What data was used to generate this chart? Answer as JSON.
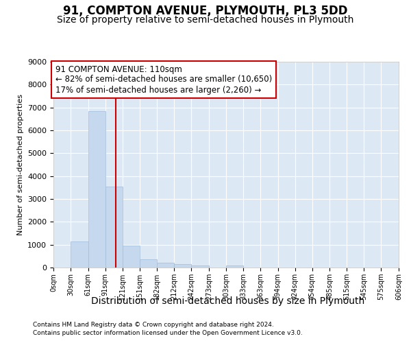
{
  "title": "91, COMPTON AVENUE, PLYMOUTH, PL3 5DD",
  "subtitle": "Size of property relative to semi-detached houses in Plymouth",
  "xlabel": "Distribution of semi-detached houses by size in Plymouth",
  "ylabel": "Number of semi-detached properties",
  "bin_edges": [
    0,
    30,
    61,
    91,
    121,
    151,
    182,
    212,
    242,
    273,
    303,
    333,
    363,
    394,
    424,
    454,
    485,
    515,
    545,
    575,
    606
  ],
  "bar_heights": [
    0,
    1150,
    6850,
    3550,
    950,
    350,
    200,
    150,
    100,
    0,
    100,
    0,
    0,
    0,
    0,
    0,
    0,
    0,
    0,
    0
  ],
  "bar_color": "#c5d8ee",
  "bar_edge_color": "#a0bcd8",
  "property_size": 110,
  "red_line_color": "#cc0000",
  "ylim": [
    0,
    9000
  ],
  "yticks": [
    0,
    1000,
    2000,
    3000,
    4000,
    5000,
    6000,
    7000,
    8000,
    9000
  ],
  "annotation_line1": "91 COMPTON AVENUE: 110sqm",
  "annotation_line2": "← 82% of semi-detached houses are smaller (10,650)",
  "annotation_line3": "17% of semi-detached houses are larger (2,260) →",
  "annotation_box_color": "#ffffff",
  "annotation_box_edge": "#cc0000",
  "bg_color": "#dde8f5",
  "footer_line1": "Contains HM Land Registry data © Crown copyright and database right 2024.",
  "footer_line2": "Contains public sector information licensed under the Open Government Licence v3.0.",
  "title_fontsize": 12,
  "subtitle_fontsize": 10,
  "tick_label_fontsize": 7,
  "ylabel_fontsize": 8,
  "xlabel_fontsize": 10
}
